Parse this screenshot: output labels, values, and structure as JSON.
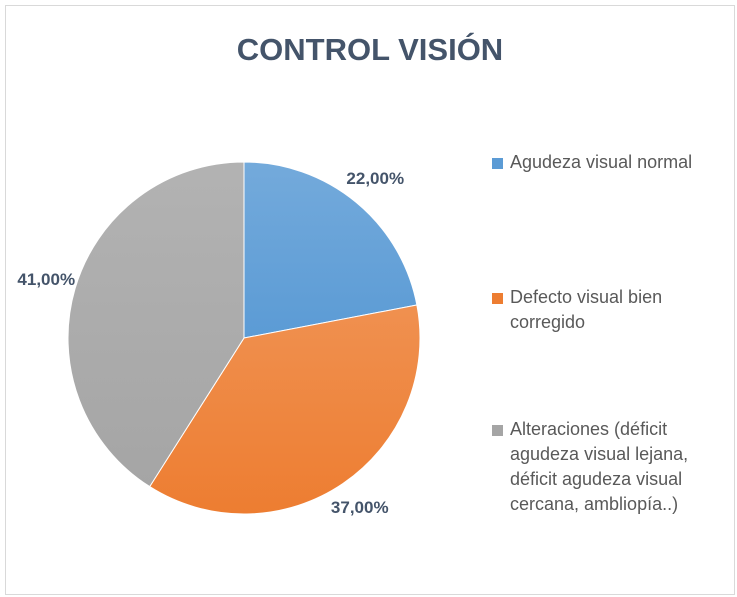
{
  "chart_data": {
    "type": "pie",
    "title": "CONTROL VISIÓN",
    "categories": [
      "Agudeza visual normal",
      "Defecto visual bien corregido",
      "Alteraciones (déficit agudeza visual lejana, déficit agudeza visual cercana,  ambliopía..)"
    ],
    "values": [
      22,
      37,
      41
    ],
    "value_labels": [
      "22,00%",
      "37,00%",
      "41,00%"
    ],
    "colors": [
      "#5b9bd5",
      "#ed7d31",
      "#a5a5a5"
    ],
    "legend": "right"
  }
}
